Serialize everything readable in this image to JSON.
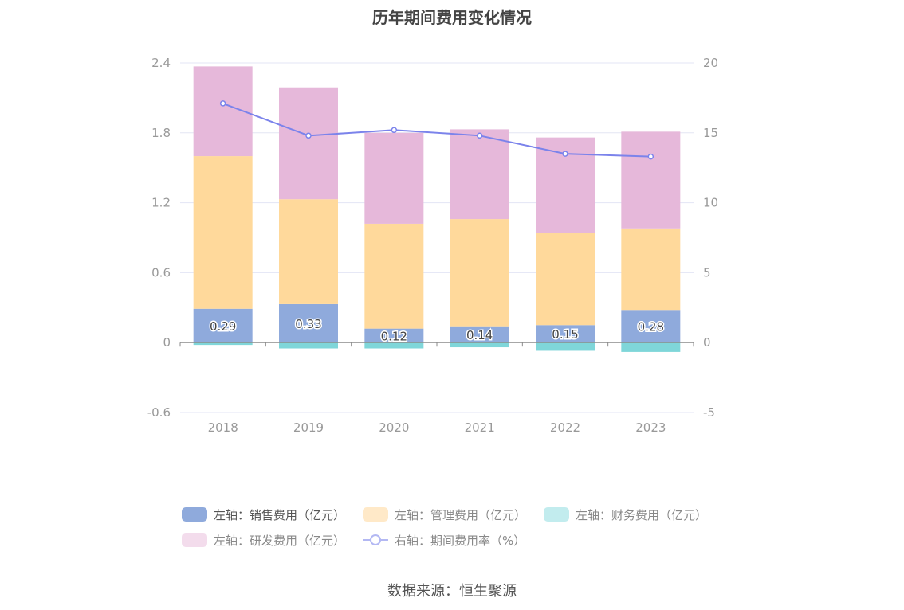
{
  "title": "历年期间费用变化情况",
  "source": "数据来源：恒生聚源",
  "chart_data": {
    "type": "bar",
    "categories": [
      "2018",
      "2019",
      "2020",
      "2021",
      "2022",
      "2023"
    ],
    "series": [
      {
        "name": "左轴：销售费用（亿元）",
        "axis": "left",
        "type": "stacked-bar",
        "color": "#8faadc",
        "values": [
          0.29,
          0.33,
          0.12,
          0.14,
          0.15,
          0.28
        ],
        "labels": [
          "0.29",
          "0.33",
          "0.12",
          "0.14",
          "0.15",
          "0.28"
        ]
      },
      {
        "name": "左轴：管理费用（亿元）",
        "axis": "left",
        "type": "stacked-bar",
        "color": "#ffd99b",
        "values": [
          1.31,
          0.9,
          0.9,
          0.92,
          0.79,
          0.7
        ]
      },
      {
        "name": "左轴：财务费用（亿元）",
        "axis": "left",
        "type": "stacked-bar",
        "color": "#7fd6d9",
        "values": [
          -0.02,
          -0.05,
          -0.05,
          -0.04,
          -0.07,
          -0.08
        ]
      },
      {
        "name": "左轴：研发费用（亿元）",
        "axis": "left",
        "type": "stacked-bar",
        "color": "#e6b8da",
        "values": [
          0.77,
          0.96,
          0.78,
          0.77,
          0.82,
          0.83
        ]
      },
      {
        "name": "右轴：期间费用率（%）",
        "axis": "right",
        "type": "line",
        "color": "#7b83eb",
        "values": [
          17.1,
          14.8,
          15.2,
          14.8,
          13.5,
          13.3
        ]
      }
    ],
    "y_left": {
      "ylim": [
        -0.6,
        2.4
      ],
      "ticks": [
        "-0.6",
        "0",
        "0.6",
        "1.2",
        "1.8",
        "2.4"
      ]
    },
    "y_right": {
      "ylim": [
        -5,
        20
      ],
      "ticks": [
        "-5",
        "0",
        "5",
        "10",
        "15",
        "20"
      ]
    },
    "grid": true,
    "legend_position": "bottom"
  }
}
